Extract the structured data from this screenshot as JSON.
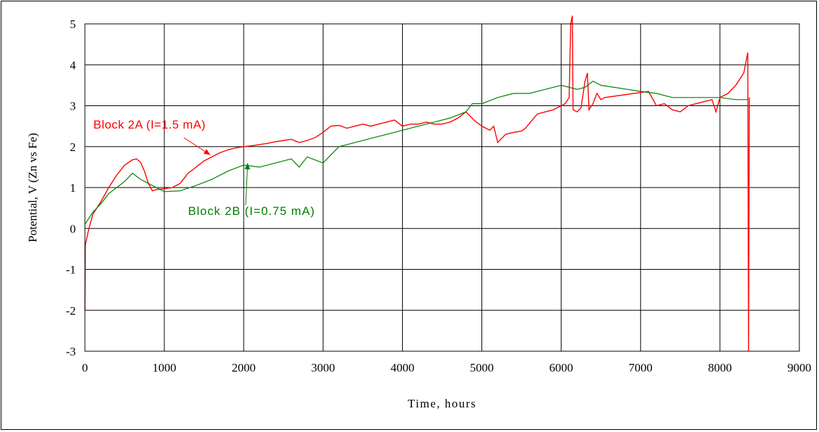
{
  "chart_data": {
    "type": "line",
    "title": "",
    "xlabel": "Time, hours",
    "ylabel": "Potential, V (Zn vs Fe)",
    "xlim": [
      0,
      9000
    ],
    "ylim": [
      -3,
      5
    ],
    "x_ticks": [
      "0",
      "1000",
      "2000",
      "3000",
      "4000",
      "5000",
      "6000",
      "7000",
      "8000",
      "9000"
    ],
    "y_ticks": [
      "5",
      "4",
      "3",
      "2",
      "1",
      "0",
      "-1",
      "-2",
      "-3"
    ],
    "grid": true,
    "series": [
      {
        "name": "Block 2A (I=1.5 mA)",
        "color": "#ff0000",
        "points": [
          [
            0,
            -2.0
          ],
          [
            5,
            -0.4
          ],
          [
            50,
            0.0
          ],
          [
            100,
            0.35
          ],
          [
            200,
            0.65
          ],
          [
            300,
            1.0
          ],
          [
            400,
            1.3
          ],
          [
            500,
            1.55
          ],
          [
            600,
            1.68
          ],
          [
            650,
            1.7
          ],
          [
            700,
            1.62
          ],
          [
            750,
            1.4
          ],
          [
            800,
            1.1
          ],
          [
            850,
            0.92
          ],
          [
            900,
            0.95
          ],
          [
            1000,
            0.97
          ],
          [
            1100,
            1.0
          ],
          [
            1200,
            1.1
          ],
          [
            1300,
            1.35
          ],
          [
            1400,
            1.5
          ],
          [
            1500,
            1.65
          ],
          [
            1600,
            1.75
          ],
          [
            1700,
            1.85
          ],
          [
            1800,
            1.92
          ],
          [
            1900,
            1.97
          ],
          [
            2000,
            2.0
          ],
          [
            2100,
            2.02
          ],
          [
            2200,
            2.05
          ],
          [
            2300,
            2.08
          ],
          [
            2400,
            2.12
          ],
          [
            2500,
            2.15
          ],
          [
            2600,
            2.18
          ],
          [
            2700,
            2.1
          ],
          [
            2800,
            2.15
          ],
          [
            2900,
            2.22
          ],
          [
            3000,
            2.35
          ],
          [
            3100,
            2.5
          ],
          [
            3200,
            2.52
          ],
          [
            3300,
            2.45
          ],
          [
            3400,
            2.5
          ],
          [
            3500,
            2.55
          ],
          [
            3600,
            2.5
          ],
          [
            3700,
            2.55
          ],
          [
            3800,
            2.6
          ],
          [
            3900,
            2.65
          ],
          [
            4000,
            2.5
          ],
          [
            4100,
            2.55
          ],
          [
            4200,
            2.55
          ],
          [
            4300,
            2.6
          ],
          [
            4400,
            2.55
          ],
          [
            4500,
            2.55
          ],
          [
            4600,
            2.6
          ],
          [
            4700,
            2.7
          ],
          [
            4800,
            2.85
          ],
          [
            4900,
            2.65
          ],
          [
            5000,
            2.5
          ],
          [
            5100,
            2.4
          ],
          [
            5150,
            2.5
          ],
          [
            5200,
            2.1
          ],
          [
            5300,
            2.3
          ],
          [
            5400,
            2.35
          ],
          [
            5500,
            2.38
          ],
          [
            5550,
            2.45
          ],
          [
            5700,
            2.8
          ],
          [
            5900,
            2.9
          ],
          [
            6000,
            3.0
          ],
          [
            6050,
            3.05
          ],
          [
            6100,
            3.2
          ],
          [
            6120,
            5.0
          ],
          [
            6140,
            5.2
          ],
          [
            6150,
            2.9
          ],
          [
            6200,
            2.85
          ],
          [
            6250,
            2.95
          ],
          [
            6300,
            3.6
          ],
          [
            6330,
            3.8
          ],
          [
            6350,
            2.9
          ],
          [
            6400,
            3.05
          ],
          [
            6450,
            3.3
          ],
          [
            6500,
            3.15
          ],
          [
            6550,
            3.2
          ],
          [
            7100,
            3.35
          ],
          [
            7200,
            3.0
          ],
          [
            7300,
            3.05
          ],
          [
            7400,
            2.9
          ],
          [
            7500,
            2.85
          ],
          [
            7600,
            3.0
          ],
          [
            7700,
            3.05
          ],
          [
            7800,
            3.1
          ],
          [
            7900,
            3.15
          ],
          [
            7950,
            2.85
          ],
          [
            8000,
            3.2
          ],
          [
            8100,
            3.3
          ],
          [
            8200,
            3.5
          ],
          [
            8300,
            3.8
          ],
          [
            8350,
            4.3
          ],
          [
            8360,
            -3.0
          ],
          [
            8370,
            3.2
          ]
        ]
      },
      {
        "name": "Block 2B (I=0.75 mA)",
        "color": "#008000",
        "points": [
          [
            0,
            0.1
          ],
          [
            100,
            0.4
          ],
          [
            200,
            0.6
          ],
          [
            300,
            0.85
          ],
          [
            400,
            1.0
          ],
          [
            500,
            1.15
          ],
          [
            600,
            1.35
          ],
          [
            700,
            1.2
          ],
          [
            800,
            1.1
          ],
          [
            900,
            1.0
          ],
          [
            1000,
            0.9
          ],
          [
            1200,
            0.92
          ],
          [
            1400,
            1.05
          ],
          [
            1600,
            1.2
          ],
          [
            1800,
            1.4
          ],
          [
            2000,
            1.55
          ],
          [
            2200,
            1.5
          ],
          [
            2400,
            1.6
          ],
          [
            2600,
            1.7
          ],
          [
            2700,
            1.5
          ],
          [
            2800,
            1.75
          ],
          [
            3000,
            1.6
          ],
          [
            3200,
            2.0
          ],
          [
            3400,
            2.1
          ],
          [
            3600,
            2.2
          ],
          [
            3800,
            2.3
          ],
          [
            4000,
            2.4
          ],
          [
            4200,
            2.5
          ],
          [
            4400,
            2.6
          ],
          [
            4600,
            2.7
          ],
          [
            4800,
            2.85
          ],
          [
            4880,
            3.05
          ],
          [
            5000,
            3.05
          ],
          [
            5200,
            3.2
          ],
          [
            5400,
            3.3
          ],
          [
            5600,
            3.3
          ],
          [
            5800,
            3.4
          ],
          [
            6000,
            3.5
          ],
          [
            6100,
            3.45
          ],
          [
            6200,
            3.4
          ],
          [
            6300,
            3.45
          ],
          [
            6400,
            3.6
          ],
          [
            6500,
            3.5
          ],
          [
            7000,
            3.35
          ],
          [
            7200,
            3.3
          ],
          [
            7400,
            3.2
          ],
          [
            7600,
            3.2
          ],
          [
            7800,
            3.2
          ],
          [
            8000,
            3.2
          ],
          [
            8200,
            3.15
          ],
          [
            8350,
            3.15
          ]
        ]
      }
    ],
    "annotations": [
      {
        "text": "Block 2A (I=1.5 mA)",
        "color": "#ff0000",
        "arrow_to": [
          1580,
          1.8
        ]
      },
      {
        "text": "Block 2B (I=0.75 mA)",
        "color": "#008000",
        "arrow_to": [
          2050,
          1.6
        ]
      }
    ]
  }
}
